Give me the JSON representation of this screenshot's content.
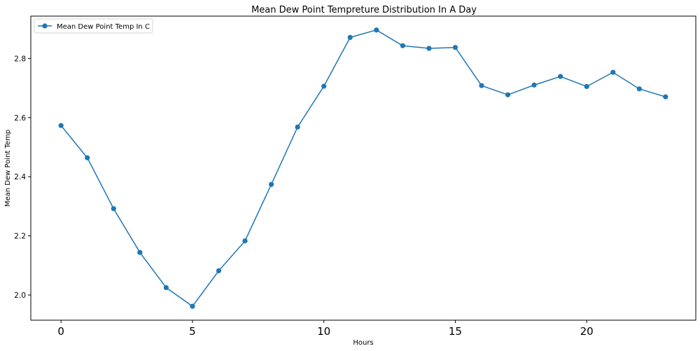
{
  "chart_data": {
    "type": "line",
    "title": "Mean Dew Point Tempreture Distribution In A Day",
    "xlabel": "Hours",
    "ylabel": "Mean Dew Point Temp",
    "x": [
      0,
      1,
      2,
      3,
      4,
      5,
      6,
      7,
      8,
      9,
      10,
      11,
      12,
      13,
      14,
      15,
      16,
      17,
      18,
      19,
      20,
      21,
      22,
      23
    ],
    "series": [
      {
        "name": "Mean Dew Point Temp In C",
        "values": [
          2.573,
          2.464,
          2.292,
          2.144,
          2.025,
          1.962,
          2.082,
          2.183,
          2.374,
          2.568,
          2.706,
          2.871,
          2.896,
          2.843,
          2.834,
          2.837,
          2.708,
          2.677,
          2.71,
          2.739,
          2.705,
          2.753,
          2.697,
          2.67
        ],
        "color": "#1f77b4",
        "marker": "circle"
      }
    ],
    "xticks": [
      0,
      5,
      10,
      15,
      20
    ],
    "xtick_labels": [
      "0",
      "5",
      "10",
      "15",
      "20"
    ],
    "yticks": [
      2.0,
      2.2,
      2.4,
      2.6,
      2.8
    ],
    "ytick_labels": [
      "2.0",
      "2.2",
      "2.4",
      "2.6",
      "2.8"
    ],
    "xlim": [
      -1.15,
      24.15
    ],
    "ylim": [
      1.915,
      2.943
    ],
    "grid": false,
    "legend_position": "upper left"
  }
}
